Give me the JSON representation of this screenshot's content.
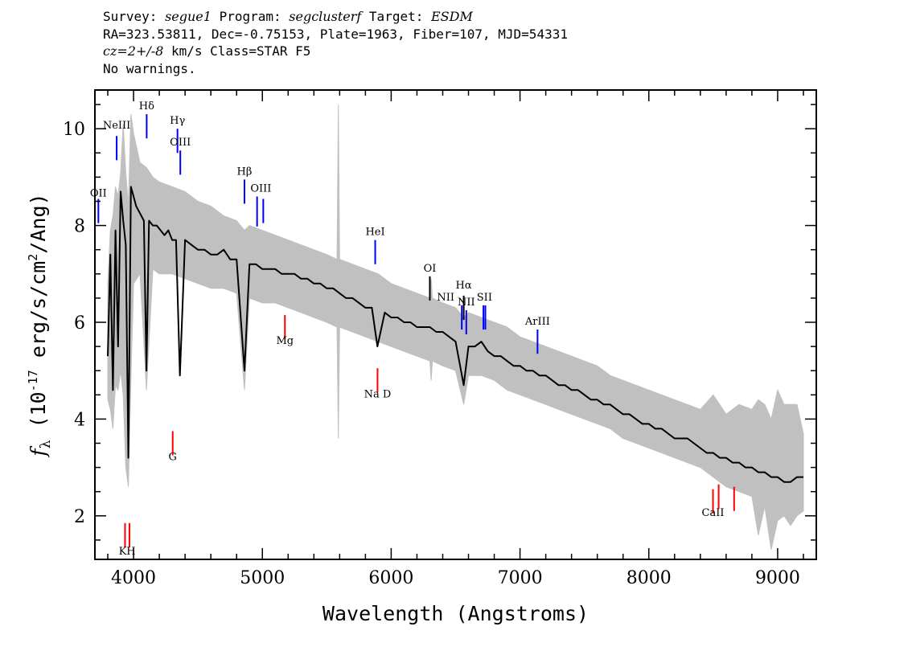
{
  "header": {
    "survey_label": "Survey:",
    "survey": "segue1",
    "program_label": "Program:",
    "program": "segclusterf",
    "target_label": "Target:",
    "target": "ESDM",
    "line2": "RA=323.53811, Dec=-0.75153, Plate=1963, Fiber=107, MJD=54331",
    "cz_label": "cz=2+/-8",
    "cz_rest": "km/s Class=STAR F5",
    "line4": "No warnings."
  },
  "chart_data": {
    "type": "line",
    "xlabel": "Wavelength (Angstroms)",
    "ylabel": "f_λ (10^-17 erg/s/cm^2/Ang)",
    "ylabel_parts": {
      "f": "f",
      "lambda": "λ",
      "open": "(10",
      "exp": "-17",
      "mid": " erg/s/cm",
      "sq": "2",
      "close": "/Ang)"
    },
    "xlim": [
      3700,
      9300
    ],
    "ylim": [
      1.1,
      10.8
    ],
    "xticks": [
      4000,
      5000,
      6000,
      7000,
      8000,
      9000
    ],
    "yticks": [
      2,
      4,
      6,
      8,
      10
    ],
    "series": [
      {
        "role": "flux",
        "color": "#000000",
        "x": [
          3800,
          3820,
          3840,
          3860,
          3880,
          3900,
          3920,
          3940,
          3960,
          3980,
          4000,
          4020,
          4040,
          4060,
          4080,
          4100,
          4120,
          4150,
          4180,
          4210,
          4240,
          4270,
          4300,
          4330,
          4360,
          4400,
          4450,
          4500,
          4550,
          4600,
          4650,
          4700,
          4750,
          4800,
          4861,
          4900,
          4950,
          5000,
          5050,
          5100,
          5150,
          5200,
          5250,
          5300,
          5350,
          5400,
          5450,
          5500,
          5550,
          5600,
          5650,
          5700,
          5750,
          5800,
          5850,
          5893,
          5950,
          6000,
          6050,
          6100,
          6150,
          6200,
          6250,
          6300,
          6350,
          6400,
          6450,
          6500,
          6563,
          6600,
          6650,
          6700,
          6750,
          6800,
          6850,
          6900,
          6950,
          7000,
          7050,
          7100,
          7150,
          7200,
          7250,
          7300,
          7350,
          7400,
          7450,
          7500,
          7550,
          7600,
          7650,
          7700,
          7750,
          7800,
          7850,
          7900,
          7950,
          8000,
          8050,
          8100,
          8150,
          8200,
          8250,
          8300,
          8350,
          8400,
          8450,
          8500,
          8550,
          8600,
          8650,
          8700,
          8750,
          8800,
          8850,
          8900,
          8950,
          9000,
          9050,
          9100,
          9150,
          9200
        ],
        "y": [
          5.3,
          7.4,
          4.6,
          7.9,
          5.5,
          8.7,
          8.1,
          7.6,
          3.2,
          8.8,
          8.6,
          8.4,
          8.3,
          8.2,
          8.1,
          5.0,
          8.1,
          8.0,
          8.0,
          7.9,
          7.8,
          7.9,
          7.7,
          7.7,
          4.9,
          7.7,
          7.6,
          7.5,
          7.5,
          7.4,
          7.4,
          7.5,
          7.3,
          7.3,
          5.0,
          7.2,
          7.2,
          7.1,
          7.1,
          7.1,
          7.0,
          7.0,
          7.0,
          6.9,
          6.9,
          6.8,
          6.8,
          6.7,
          6.7,
          6.6,
          6.5,
          6.5,
          6.4,
          6.3,
          6.3,
          5.5,
          6.2,
          6.1,
          6.1,
          6.0,
          6.0,
          5.9,
          5.9,
          5.9,
          5.8,
          5.8,
          5.7,
          5.6,
          4.7,
          5.5,
          5.5,
          5.6,
          5.4,
          5.3,
          5.3,
          5.2,
          5.1,
          5.1,
          5.0,
          5.0,
          4.9,
          4.9,
          4.8,
          4.7,
          4.7,
          4.6,
          4.6,
          4.5,
          4.4,
          4.4,
          4.3,
          4.3,
          4.2,
          4.1,
          4.1,
          4.0,
          3.9,
          3.9,
          3.8,
          3.8,
          3.7,
          3.6,
          3.6,
          3.6,
          3.5,
          3.4,
          3.3,
          3.3,
          3.2,
          3.2,
          3.1,
          3.1,
          3.0,
          3.0,
          2.9,
          2.9,
          2.8,
          2.8,
          2.7,
          2.7,
          2.8,
          2.8
        ]
      },
      {
        "role": "error",
        "color": "#c0c0c0",
        "x": [
          3800,
          3820,
          3840,
          3860,
          3880,
          3900,
          3920,
          3940,
          3960,
          3980,
          4000,
          4050,
          4100,
          4150,
          4200,
          4300,
          4400,
          4500,
          4600,
          4700,
          4800,
          4861,
          4900,
          5000,
          5100,
          5200,
          5300,
          5400,
          5500,
          5580,
          5590,
          5600,
          5700,
          5800,
          5900,
          6000,
          6100,
          6200,
          6300,
          6310,
          6320,
          6400,
          6500,
          6563,
          6600,
          6700,
          6800,
          6900,
          7000,
          7100,
          7200,
          7300,
          7400,
          7500,
          7600,
          7700,
          7800,
          7900,
          8000,
          8100,
          8200,
          8300,
          8400,
          8500,
          8600,
          8700,
          8800,
          8850,
          8900,
          8950,
          9000,
          9050,
          9100,
          9150,
          9200
        ],
        "low": [
          4.4,
          4.2,
          3.8,
          4.7,
          4.6,
          5.0,
          4.5,
          3.0,
          2.6,
          4.8,
          6.8,
          7.0,
          4.6,
          7.1,
          7.0,
          7.0,
          6.9,
          6.8,
          6.7,
          6.7,
          6.6,
          4.6,
          6.5,
          6.4,
          6.4,
          6.3,
          6.2,
          6.1,
          6.0,
          5.9,
          3.6,
          5.9,
          5.8,
          5.7,
          5.6,
          5.5,
          5.4,
          5.3,
          5.2,
          4.8,
          5.2,
          5.1,
          5.0,
          4.3,
          4.9,
          4.9,
          4.8,
          4.6,
          4.5,
          4.4,
          4.3,
          4.2,
          4.1,
          4.0,
          3.9,
          3.8,
          3.6,
          3.5,
          3.4,
          3.3,
          3.2,
          3.1,
          3.0,
          2.8,
          2.6,
          2.5,
          2.4,
          1.6,
          2.2,
          1.3,
          1.9,
          2.0,
          1.8,
          2.0,
          2.1
        ],
        "high": [
          6.8,
          7.9,
          8.2,
          8.8,
          8.6,
          9.1,
          10.1,
          9.1,
          8.4,
          10.3,
          9.9,
          9.3,
          9.2,
          9.0,
          8.9,
          8.8,
          8.7,
          8.5,
          8.4,
          8.2,
          8.1,
          7.9,
          8.0,
          7.9,
          7.8,
          7.7,
          7.6,
          7.5,
          7.4,
          7.3,
          10.5,
          7.3,
          7.2,
          7.1,
          7.0,
          6.8,
          6.7,
          6.6,
          6.5,
          6.9,
          6.5,
          6.4,
          6.3,
          6.1,
          6.2,
          6.1,
          6.0,
          5.9,
          5.7,
          5.6,
          5.5,
          5.4,
          5.3,
          5.2,
          5.1,
          4.9,
          4.8,
          4.7,
          4.6,
          4.5,
          4.4,
          4.3,
          4.2,
          4.5,
          4.1,
          4.3,
          4.2,
          4.4,
          4.3,
          4.0,
          4.6,
          4.3,
          4.3,
          4.3,
          3.7
        ]
      }
    ],
    "annotations": [
      {
        "label": "OII",
        "x": 3727,
        "y_label": 8.6,
        "y1": 8.55,
        "y2": 8.05,
        "color": "blue"
      },
      {
        "label": "NeIII",
        "x": 3869,
        "y_label": 10.0,
        "y1": 9.85,
        "y2": 9.35,
        "color": "blue"
      },
      {
        "label": "Hδ",
        "x": 4102,
        "y_label": 10.4,
        "y1": 10.3,
        "y2": 9.8,
        "color": "blue"
      },
      {
        "label": "Hγ",
        "x": 4341,
        "y_label": 10.1,
        "y1": 10.0,
        "y2": 9.5,
        "color": "blue"
      },
      {
        "label": "OIII",
        "x": 4363,
        "y_label": 9.65,
        "y1": 9.55,
        "y2": 9.05,
        "color": "blue"
      },
      {
        "label": "Hβ",
        "x": 4861,
        "y_label": 9.05,
        "y1": 8.95,
        "y2": 8.45,
        "color": "blue"
      },
      {
        "label": "OIII",
        "x": 4959,
        "y_label": 8.7,
        "y1": 8.6,
        "y2": 7.98,
        "color": "blue"
      },
      {
        "label": "OIII_2",
        "x": 5007,
        "y_label": null,
        "y1": 8.55,
        "y2": 8.05,
        "color": "blue"
      },
      {
        "label": "HeI",
        "x": 5876,
        "y_label": 7.8,
        "y1": 7.7,
        "y2": 7.2,
        "color": "blue"
      },
      {
        "label": "OI",
        "x": 6300,
        "y_label": 7.05,
        "y1": 6.95,
        "y2": 6.45,
        "color": "black"
      },
      {
        "label": "NII",
        "x": 6548,
        "y_label": 6.45,
        "y1": 6.35,
        "y2": 5.85,
        "color": "blue"
      },
      {
        "label": "Hα",
        "x": 6563,
        "y_label": 6.7,
        "y1": 6.55,
        "y2": 6.05,
        "color": "black"
      },
      {
        "label": "NII",
        "x": 6583,
        "y_label": 6.35,
        "y1": 6.25,
        "y2": 5.75,
        "color": "blue"
      },
      {
        "label": "SII",
        "x": 6716,
        "y_label": 6.45,
        "y1": 6.35,
        "y2": 5.85,
        "color": "blue"
      },
      {
        "label": "SII_2",
        "x": 6731,
        "y_label": null,
        "y1": 6.35,
        "y2": 5.85,
        "color": "blue"
      },
      {
        "label": "ArIII",
        "x": 7136,
        "y_label": 5.95,
        "y1": 5.85,
        "y2": 5.35,
        "color": "blue"
      },
      {
        "label": "Mg",
        "x": 5175,
        "y_label": 5.55,
        "y1": 6.15,
        "y2": 5.65,
        "color": "red"
      },
      {
        "label": "Na D",
        "x": 5894,
        "y_label": 4.45,
        "y1": 5.05,
        "y2": 4.55,
        "color": "red"
      },
      {
        "label": "G",
        "x": 4304,
        "y_label": 3.15,
        "y1": 3.75,
        "y2": 3.25,
        "color": "red"
      },
      {
        "label": "K",
        "x": 3934,
        "y_label": 1.2,
        "y1": 1.85,
        "y2": 1.35,
        "color": "red"
      },
      {
        "label": "H",
        "x": 3968,
        "y_label": 1.2,
        "y1": 1.85,
        "y2": 1.35,
        "color": "red"
      },
      {
        "label": "CaII",
        "x": 8498,
        "y_label": 2.0,
        "y1": 2.55,
        "y2": 2.05,
        "color": "red"
      },
      {
        "label": "CaII_2",
        "x": 8542,
        "y_label": null,
        "y1": 2.65,
        "y2": 2.15,
        "color": "red"
      },
      {
        "label": "CaII_3",
        "x": 8662,
        "y_label": null,
        "y1": 2.6,
        "y2": 2.1,
        "color": "red"
      }
    ]
  }
}
